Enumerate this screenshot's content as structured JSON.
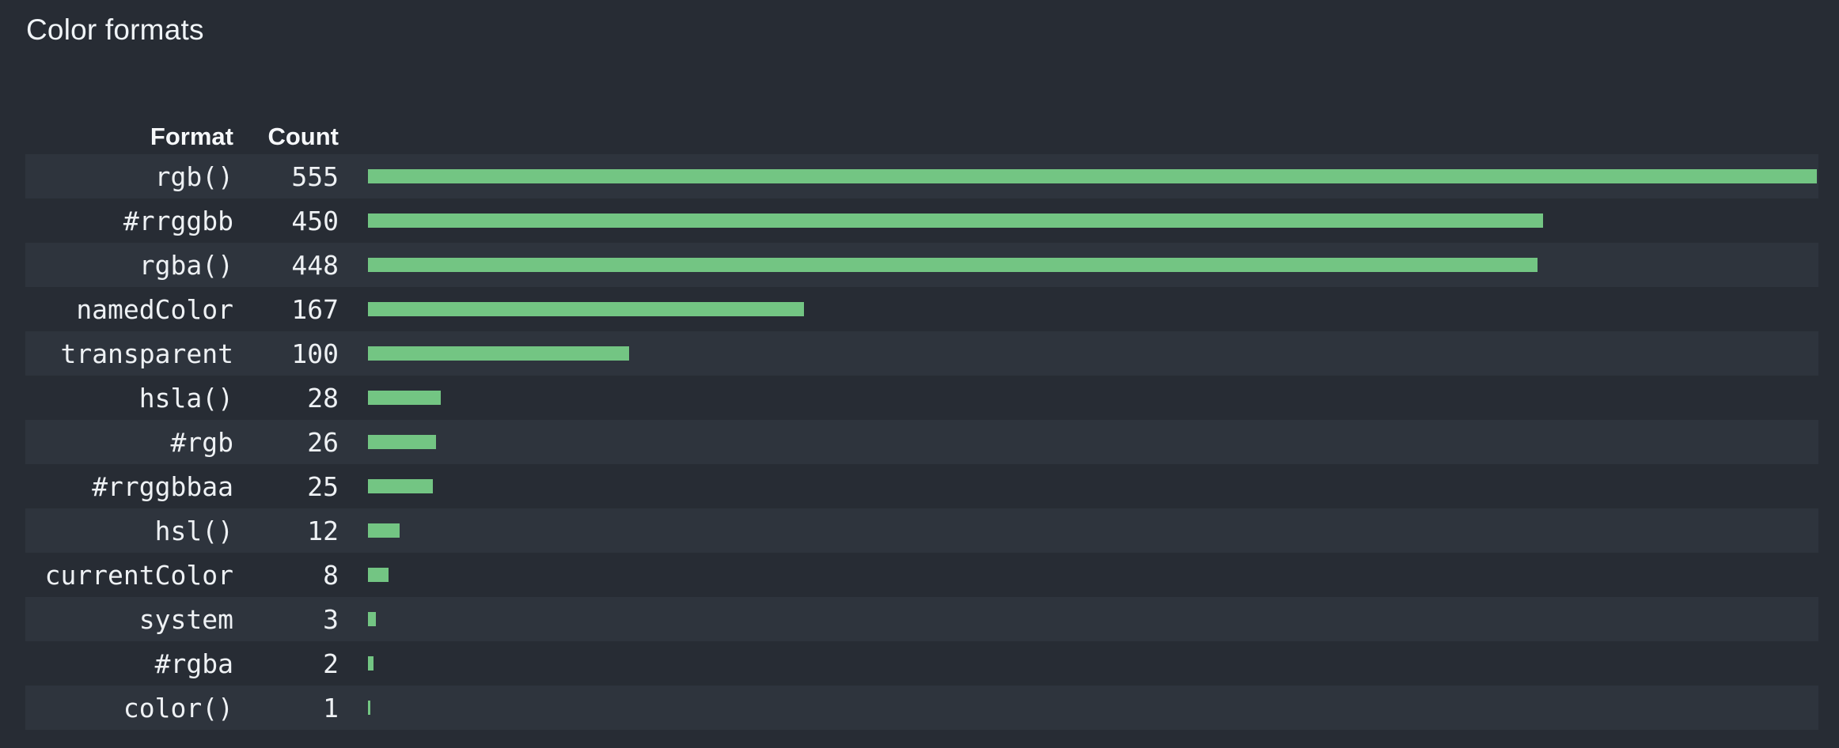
{
  "title": "Color formats",
  "table": {
    "column_headers": [
      "Format",
      "Count"
    ]
  },
  "chart_data": {
    "type": "bar",
    "orientation": "horizontal",
    "title": "Color formats",
    "categories": [
      "rgb()",
      "#rrggbb",
      "rgba()",
      "namedColor",
      "transparent",
      "hsla()",
      "#rgb",
      "#rrggbbaa",
      "hsl()",
      "currentColor",
      "system",
      "#rgba",
      "color()"
    ],
    "values": [
      555,
      450,
      448,
      167,
      100,
      28,
      26,
      25,
      12,
      8,
      3,
      2,
      1
    ],
    "value_axis_range": [
      0,
      555
    ],
    "grid": "off",
    "legend": "none",
    "column_headers": [
      "Format",
      "Count"
    ],
    "colors": {
      "background": "#272c34",
      "row_stripe": "#2e343d",
      "bar": "#73c583",
      "text": "#eef1f4",
      "header_text": "#f6f8fa"
    }
  }
}
